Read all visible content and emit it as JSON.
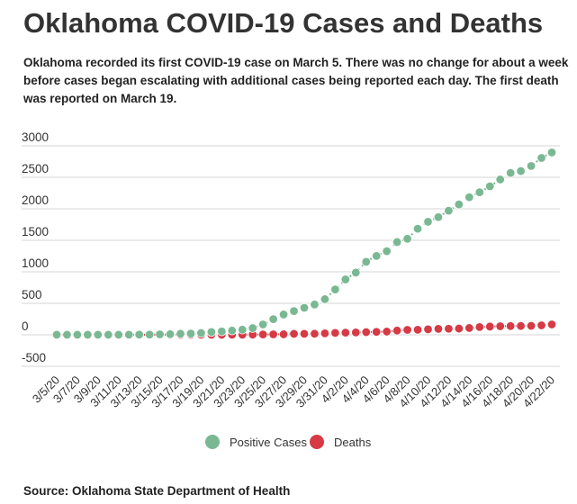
{
  "chart_data": {
    "type": "scatter",
    "title": "Oklahoma COVID-19 Cases and Deaths",
    "subtitle": "Oklahoma recorded its first COVID-19 case on March 5. There was no change for about a week before cases began escalating with additional cases being reported each day. The first death was reported on March 19.",
    "source": "Source: Oklahoma State Department of Health",
    "x": [
      "3/5/20",
      "3/6/20",
      "3/7/20",
      "3/8/20",
      "3/9/20",
      "3/10/20",
      "3/11/20",
      "3/12/20",
      "3/13/20",
      "3/14/20",
      "3/15/20",
      "3/16/20",
      "3/17/20",
      "3/18/20",
      "3/19/20",
      "3/20/20",
      "3/21/20",
      "3/22/20",
      "3/23/20",
      "3/24/20",
      "3/25/20",
      "3/26/20",
      "3/27/20",
      "3/28/20",
      "3/29/20",
      "3/30/20",
      "3/31/20",
      "4/1/20",
      "4/2/20",
      "4/3/20",
      "4/4/20",
      "4/5/20",
      "4/6/20",
      "4/7/20",
      "4/8/20",
      "4/9/20",
      "4/10/20",
      "4/11/20",
      "4/12/20",
      "4/13/20",
      "4/14/20",
      "4/15/20",
      "4/16/20",
      "4/17/20",
      "4/18/20",
      "4/19/20",
      "4/20/20",
      "4/21/20",
      "4/22/20"
    ],
    "x_tick_labels": [
      "3/5/20",
      "3/7/20",
      "3/9/20",
      "3/11/20",
      "3/13/20",
      "3/15/20",
      "3/17/20",
      "3/19/20",
      "3/21/20",
      "3/23/20",
      "3/25/20",
      "3/27/20",
      "3/29/20",
      "3/31/20",
      "4/2/20",
      "4/4/20",
      "4/6/20",
      "4/8/20",
      "4/10/20",
      "4/12/20",
      "4/14/20",
      "4/16/20",
      "4/18/20",
      "4/20/20",
      "4/22/20"
    ],
    "yticks": [
      -500,
      0,
      500,
      1000,
      1500,
      2000,
      2500,
      3000
    ],
    "ylim": [
      -500,
      3000
    ],
    "grid": true,
    "legend_placement": "bottom",
    "series": [
      {
        "name": "Positive Cases",
        "color": "#7ab893",
        "values": [
          1,
          1,
          1,
          1,
          1,
          1,
          1,
          2,
          4,
          4,
          7,
          10,
          17,
          19,
          29,
          44,
          53,
          67,
          81,
          106,
          164,
          248,
          322,
          377,
          429,
          481,
          565,
          719,
          879,
          988,
          1159,
          1252,
          1327,
          1472,
          1524,
          1684,
          1794,
          1868,
          1970,
          2069,
          2184,
          2263,
          2357,
          2465,
          2570,
          2599,
          2680,
          2807,
          2894
        ]
      },
      {
        "name": "Deaths",
        "color": "#d63a45",
        "values": [
          0,
          0,
          0,
          0,
          0,
          0,
          0,
          0,
          0,
          0,
          0,
          0,
          0,
          0,
          1,
          1,
          1,
          2,
          2,
          3,
          5,
          7,
          8,
          15,
          16,
          17,
          23,
          30,
          34,
          38,
          42,
          46,
          51,
          67,
          79,
          80,
          88,
          94,
          96,
          99,
          108,
          123,
          131,
          136,
          139,
          140,
          143,
          150,
          164
        ]
      }
    ]
  }
}
